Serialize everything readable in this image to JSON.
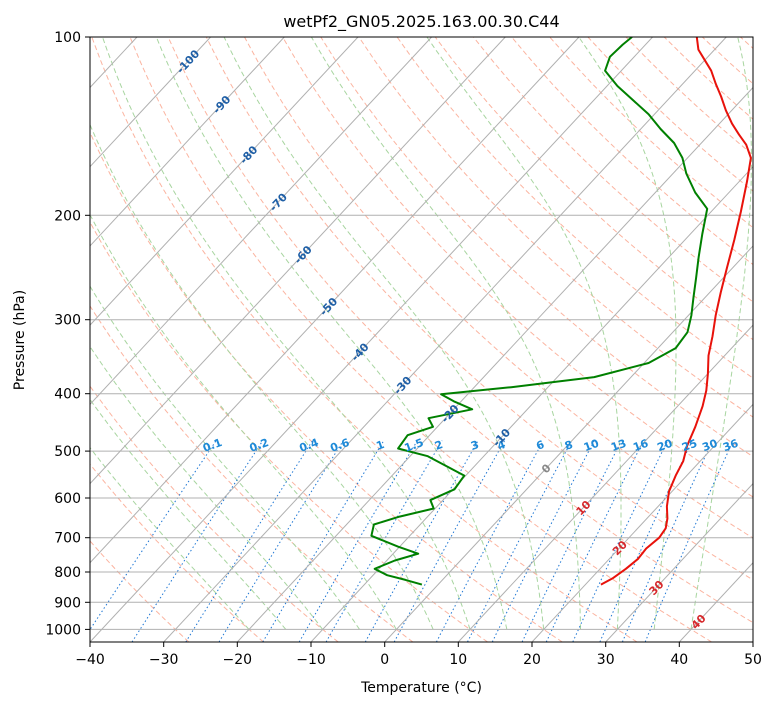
{
  "chart_data": {
    "type": "line",
    "title": "wetPf2_GN05.2025.163.00.30.C44",
    "xlabel": "Temperature (°C)",
    "ylabel": "Pressure (hPa)",
    "xlim": [
      -40,
      50
    ],
    "ylim": [
      1050,
      100
    ],
    "y_scale": "log",
    "x_ticks": [
      -40,
      -30,
      -20,
      -10,
      0,
      10,
      20,
      30,
      40,
      50
    ],
    "x_tick_labels": [
      "−40",
      "−30",
      "−20",
      "−10",
      "0",
      "10",
      "20",
      "30",
      "40",
      "50"
    ],
    "y_ticks": [
      100,
      200,
      300,
      400,
      500,
      600,
      700,
      800,
      900,
      1000
    ],
    "y_tick_labels": [
      "100",
      "200",
      "300",
      "400",
      "500",
      "600",
      "700",
      "800",
      "900",
      "1000"
    ],
    "grid": true,
    "skew": "skew-T log-p diagram",
    "series": [
      {
        "role": "temperature",
        "color": "#e8120b",
        "points": [
          [
            22.1,
            840
          ],
          [
            22.9,
            820
          ],
          [
            23.5,
            790
          ],
          [
            23.9,
            760
          ],
          [
            23.7,
            730
          ],
          [
            24.1,
            700
          ],
          [
            23.8,
            675
          ],
          [
            22.8,
            650
          ],
          [
            21.2,
            620
          ],
          [
            19.6,
            585
          ],
          [
            18.5,
            550
          ],
          [
            17.7,
            520
          ],
          [
            16.3,
            490
          ],
          [
            15.0,
            455
          ],
          [
            13.4,
            420
          ],
          [
            11.9,
            395
          ],
          [
            10.0,
            370
          ],
          [
            7.8,
            345
          ],
          [
            5.9,
            320
          ],
          [
            3.7,
            295
          ],
          [
            1.5,
            270
          ],
          [
            -0.8,
            245
          ],
          [
            -3.3,
            220
          ],
          [
            -6.0,
            197
          ],
          [
            -9.0,
            175
          ],
          [
            -11.4,
            160
          ],
          [
            -13.7,
            152
          ],
          [
            -16.0,
            146
          ],
          [
            -18.3,
            140
          ],
          [
            -20.8,
            133
          ],
          [
            -23.2,
            126
          ],
          [
            -25.5,
            120
          ],
          [
            -27.8,
            114
          ],
          [
            -30.2,
            109
          ],
          [
            -32.2,
            105
          ],
          [
            -34.0,
            100
          ]
        ]
      },
      {
        "role": "dewpoint",
        "color": "#008000",
        "points": [
          [
            -2.2,
            840
          ],
          [
            -5.0,
            825
          ],
          [
            -8.1,
            810
          ],
          [
            -10.6,
            790
          ],
          [
            -8.9,
            765
          ],
          [
            -6.6,
            745
          ],
          [
            -10.2,
            725
          ],
          [
            -15.2,
            695
          ],
          [
            -16.3,
            665
          ],
          [
            -13.8,
            645
          ],
          [
            -10.2,
            625
          ],
          [
            -11.7,
            605
          ],
          [
            -9.8,
            580
          ],
          [
            -10.2,
            550
          ],
          [
            -17.6,
            510
          ],
          [
            -22.6,
            495
          ],
          [
            -23.0,
            470
          ],
          [
            -20.6,
            455
          ],
          [
            -22.3,
            440
          ],
          [
            -17.5,
            425
          ],
          [
            -21.0,
            412
          ],
          [
            -23.6,
            401
          ],
          [
            -15.0,
            390
          ],
          [
            -5.0,
            375
          ],
          [
            0.6,
            355
          ],
          [
            2.4,
            335
          ],
          [
            2.0,
            315
          ],
          [
            0.4,
            295
          ],
          [
            -1.6,
            275
          ],
          [
            -3.7,
            255
          ],
          [
            -6.0,
            235
          ],
          [
            -8.4,
            215
          ],
          [
            -10.9,
            195
          ],
          [
            -14.6,
            183
          ],
          [
            -18.2,
            170
          ],
          [
            -20.7,
            160
          ],
          [
            -23.7,
            151
          ],
          [
            -27.3,
            143
          ],
          [
            -30.8,
            135
          ],
          [
            -34.6,
            128
          ],
          [
            -38.6,
            121
          ],
          [
            -42.2,
            114
          ],
          [
            -43.3,
            108
          ],
          [
            -43.1,
            103
          ],
          [
            -42.8,
            100
          ]
        ]
      }
    ],
    "annotations": {
      "isotherm_labels": [
        {
          "text": "-100",
          "x": -100,
          "p": 110
        },
        {
          "text": "-90",
          "x": -90,
          "p": 130
        },
        {
          "text": "-80",
          "x": -80,
          "p": 158
        },
        {
          "text": "-70",
          "x": -70,
          "p": 190
        },
        {
          "text": "-60",
          "x": -60,
          "p": 233
        },
        {
          "text": "-50",
          "x": -50,
          "p": 285
        },
        {
          "text": "-40",
          "x": -40,
          "p": 340
        },
        {
          "text": "-30",
          "x": -30,
          "p": 387
        },
        {
          "text": "-20",
          "x": -20,
          "p": 432
        },
        {
          "text": "-10",
          "x": -10,
          "p": 474
        }
      ],
      "mixing_ratio_labels": [
        "0.1",
        "0.2",
        "0.4",
        "0.6",
        "1",
        "1.5",
        "2",
        "3",
        "4",
        "6",
        "8",
        "10",
        "13",
        "16",
        "20",
        "25",
        "30",
        "36"
      ],
      "dry_adiabat_labels": [
        {
          "text": "0",
          "x": 0,
          "p": 535,
          "color": "#888888"
        },
        {
          "text": "10",
          "x": 10,
          "p": 623,
          "color": "#d6282b"
        },
        {
          "text": "20",
          "x": 20,
          "p": 728,
          "color": "#d6282b"
        },
        {
          "text": "30",
          "x": 30,
          "p": 850,
          "color": "#d6282b"
        },
        {
          "text": "40",
          "x": 40,
          "p": 970,
          "color": "#d6282b"
        }
      ]
    }
  },
  "colors": {
    "background": "#ffffff",
    "frame": "#000000",
    "grid": "#b0b0b0",
    "dry_adiabat": "#fbb4a0",
    "moist_adiabat": "#a8d5a0",
    "mixing_ratio": "#1f77d4",
    "isotherm_label": "#1f5fa6",
    "mixing_label": "#1e8ad8"
  }
}
